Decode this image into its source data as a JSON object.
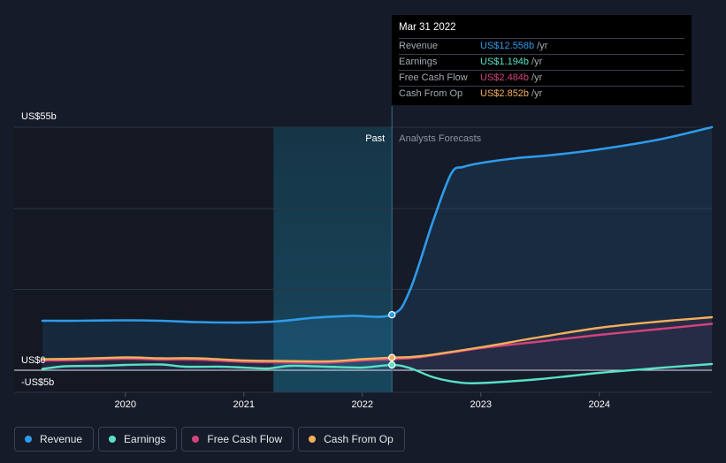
{
  "chart_data": {
    "type": "line",
    "y_unit": "US$",
    "y_tick_labels": [
      {
        "value": 55,
        "label": "US$55b"
      },
      {
        "value": 0,
        "label": "US$0"
      },
      {
        "value": -5,
        "label": "-US$5b"
      }
    ],
    "ylim": [
      -5,
      55
    ],
    "xlim": [
      2019.3,
      2024.95
    ],
    "x_ticks": [
      2020,
      2021,
      2022,
      2023,
      2024
    ],
    "x_tick_labels": [
      "2020",
      "2021",
      "2022",
      "2023",
      "2024"
    ],
    "divider_x": 2022.25,
    "highlight_start_x": 2021.25,
    "past_label": "Past",
    "forecast_label": "Analysts Forecasts",
    "series": [
      {
        "name": "Revenue",
        "color": "#2e9bea",
        "points": [
          [
            2019.3,
            11.2
          ],
          [
            2019.6,
            11.2
          ],
          [
            2020.0,
            11.3
          ],
          [
            2020.3,
            11.2
          ],
          [
            2020.6,
            10.9
          ],
          [
            2021.0,
            10.8
          ],
          [
            2021.3,
            11.1
          ],
          [
            2021.6,
            11.9
          ],
          [
            2021.9,
            12.3
          ],
          [
            2022.25,
            12.56
          ],
          [
            2022.4,
            18
          ],
          [
            2022.6,
            34
          ],
          [
            2022.75,
            44.5
          ],
          [
            2022.85,
            46
          ],
          [
            2023.0,
            46.9
          ],
          [
            2023.3,
            48
          ],
          [
            2023.6,
            48.7
          ],
          [
            2024.0,
            50
          ],
          [
            2024.5,
            52.2
          ],
          [
            2024.95,
            55
          ]
        ],
        "fill": true
      },
      {
        "name": "Earnings",
        "color": "#58e1c5",
        "points": [
          [
            2019.3,
            0.3
          ],
          [
            2019.5,
            0.9
          ],
          [
            2019.8,
            1.0
          ],
          [
            2020.0,
            1.2
          ],
          [
            2020.3,
            1.3
          ],
          [
            2020.5,
            0.8
          ],
          [
            2020.8,
            0.8
          ],
          [
            2021.0,
            0.6
          ],
          [
            2021.2,
            0.4
          ],
          [
            2021.4,
            1.0
          ],
          [
            2021.7,
            0.8
          ],
          [
            2022.0,
            0.6
          ],
          [
            2022.25,
            1.19
          ],
          [
            2022.4,
            0.5
          ],
          [
            2022.6,
            -1.6
          ],
          [
            2022.8,
            -2.7
          ],
          [
            2023.0,
            -2.9
          ],
          [
            2023.5,
            -2.0
          ],
          [
            2024.0,
            -0.6
          ],
          [
            2024.5,
            0.5
          ],
          [
            2024.95,
            1.4
          ]
        ]
      },
      {
        "name": "Free Cash Flow",
        "color": "#d2447c",
        "points": [
          [
            2019.3,
            2.2
          ],
          [
            2019.6,
            2.3
          ],
          [
            2020.0,
            2.6
          ],
          [
            2020.3,
            2.4
          ],
          [
            2020.6,
            2.4
          ],
          [
            2021.0,
            1.9
          ],
          [
            2021.3,
            1.8
          ],
          [
            2021.7,
            1.7
          ],
          [
            2022.0,
            2.2
          ],
          [
            2022.25,
            2.48
          ],
          [
            2022.5,
            3.0
          ],
          [
            2023.0,
            5.0
          ],
          [
            2023.5,
            6.5
          ],
          [
            2024.0,
            8.0
          ],
          [
            2024.5,
            9.3
          ],
          [
            2024.95,
            10.5
          ]
        ]
      },
      {
        "name": "Cash From Op",
        "color": "#f2ae5c",
        "points": [
          [
            2019.3,
            2.5
          ],
          [
            2019.6,
            2.6
          ],
          [
            2020.0,
            2.9
          ],
          [
            2020.3,
            2.7
          ],
          [
            2020.6,
            2.7
          ],
          [
            2021.0,
            2.2
          ],
          [
            2021.3,
            2.1
          ],
          [
            2021.7,
            2.0
          ],
          [
            2022.0,
            2.5
          ],
          [
            2022.25,
            2.85
          ],
          [
            2022.5,
            3.2
          ],
          [
            2023.0,
            5.2
          ],
          [
            2023.5,
            7.5
          ],
          [
            2024.0,
            9.6
          ],
          [
            2024.5,
            11.0
          ],
          [
            2024.95,
            12.0
          ]
        ]
      }
    ],
    "tooltip": {
      "date": "Mar 31 2022",
      "rows": [
        {
          "label": "Revenue",
          "value": "US$12.558b",
          "unit": "/yr",
          "color": "#2e9bea"
        },
        {
          "label": "Earnings",
          "value": "US$1.194b",
          "unit": "/yr",
          "color": "#58e1c5"
        },
        {
          "label": "Free Cash Flow",
          "value": "US$2.484b",
          "unit": "/yr",
          "color": "#d2447c"
        },
        {
          "label": "Cash From Op",
          "value": "US$2.852b",
          "unit": "/yr",
          "color": "#f2ae5c"
        }
      ]
    },
    "legend": [
      {
        "label": "Revenue",
        "color": "#2e9bea"
      },
      {
        "label": "Earnings",
        "color": "#58e1c5"
      },
      {
        "label": "Free Cash Flow",
        "color": "#d2447c"
      },
      {
        "label": "Cash From Op",
        "color": "#f2ae5c"
      }
    ]
  }
}
